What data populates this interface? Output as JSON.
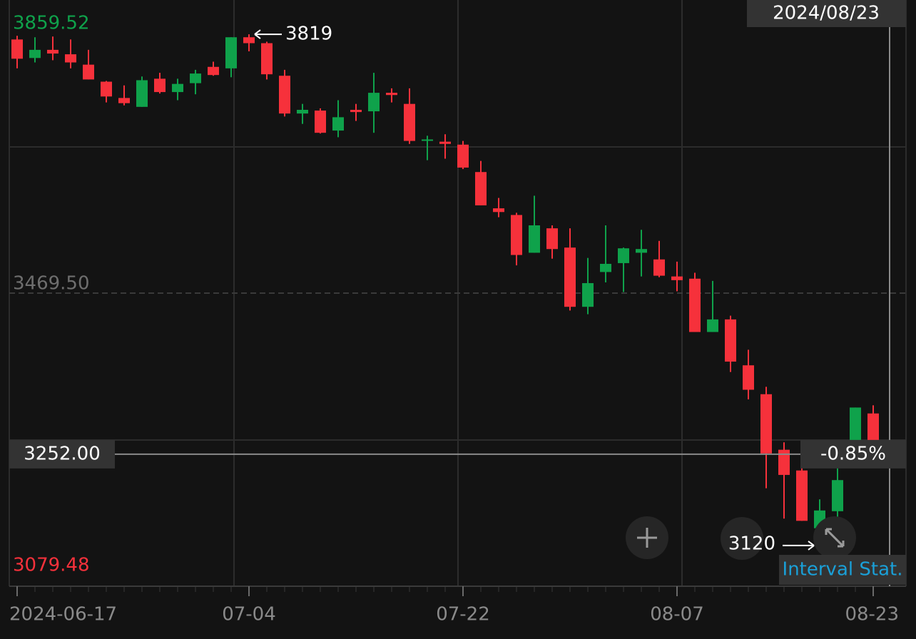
{
  "chart_data": {
    "type": "candlestick",
    "up_color": "#0fa24b",
    "down_color": "#f6313b",
    "categories": [
      "2024-06-17",
      null,
      null,
      null,
      null,
      null,
      null,
      null,
      null,
      null,
      null,
      null,
      null,
      "07-04",
      null,
      null,
      null,
      null,
      null,
      null,
      null,
      null,
      null,
      null,
      null,
      "07-22",
      null,
      null,
      null,
      null,
      null,
      null,
      null,
      null,
      null,
      null,
      null,
      "08-07",
      null,
      null,
      null,
      null,
      null,
      null,
      null,
      null,
      null,
      null,
      "08-23"
    ],
    "open": [
      3812,
      3787,
      3798,
      3792,
      3778,
      3755,
      3733,
      3721,
      3759,
      3741,
      3753,
      3775,
      3773,
      3815,
      3807,
      3763,
      3712,
      3716,
      3689,
      3717,
      3715,
      3740,
      3725,
      3676,
      3674,
      3670,
      3633,
      3584,
      3575,
      3524,
      3557,
      3531,
      3451,
      3498,
      3510,
      3524,
      3515,
      3492,
      3489,
      3417,
      3434,
      3372,
      3333,
      3258,
      3230,
      3152,
      3175,
      3249,
      3307
    ],
    "high": [
      3817,
      3815,
      3816,
      3812,
      3798,
      3756,
      3750,
      3762,
      3767,
      3759,
      3771,
      3782,
      3815,
      3819,
      3809,
      3771,
      3725,
      3719,
      3730,
      3725,
      3767,
      3746,
      3746,
      3682,
      3684,
      3675,
      3648,
      3598,
      3578,
      3601,
      3561,
      3557,
      3517,
      3561,
      3531,
      3555,
      3540,
      3512,
      3497,
      3486,
      3439,
      3393,
      3343,
      3268,
      3259,
      3191,
      3233,
      3315,
      3318
    ],
    "low": [
      3773,
      3781,
      3784,
      3773,
      3758,
      3727,
      3723,
      3721,
      3739,
      3730,
      3738,
      3763,
      3761,
      3796,
      3758,
      3708,
      3698,
      3685,
      3680,
      3702,
      3686,
      3727,
      3671,
      3649,
      3651,
      3637,
      3588,
      3572,
      3507,
      3524,
      3516,
      3446,
      3441,
      3484,
      3471,
      3492,
      3491,
      3472,
      3417,
      3417,
      3363,
      3326,
      3206,
      3165,
      3162,
      3120,
      3162,
      3249,
      3259
    ],
    "close": [
      3786,
      3798,
      3793,
      3781,
      3758,
      3735,
      3726,
      3757,
      3741,
      3752,
      3766,
      3764,
      3815,
      3807,
      3765,
      3712,
      3717,
      3686,
      3707,
      3714,
      3740,
      3737,
      3675,
      3677,
      3671,
      3639,
      3588,
      3579,
      3521,
      3561,
      3529,
      3451,
      3483,
      3509,
      3530,
      3529,
      3493,
      3487,
      3417,
      3434,
      3377,
      3339,
      3253,
      3224,
      3162,
      3176,
      3217,
      3315,
      3268
    ],
    "ylim": [
      3079.48,
      3859.52
    ],
    "yticks": [
      3859.52,
      {
        "value": 3469.5,
        "label": "3469.50"
      },
      3079.48
    ],
    "annotations": [
      {
        "value": 3819,
        "label": "3819",
        "kind": "high"
      },
      {
        "value": 3120,
        "label": "3120",
        "kind": "low"
      }
    ],
    "crosshair": {
      "value": 3252,
      "label": "3252.00",
      "date": "2024/08/23",
      "change": "-0.85%"
    },
    "button": "Interval Stat."
  }
}
